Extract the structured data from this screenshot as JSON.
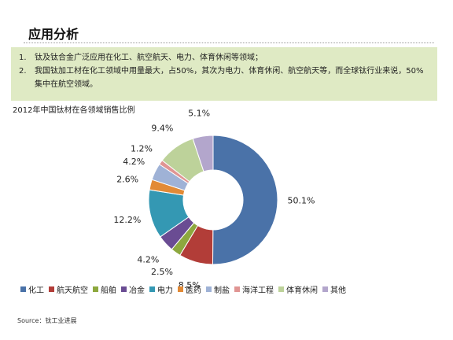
{
  "header": {
    "title": "应用分析"
  },
  "bullets": [
    {
      "num": "1.",
      "text": "钛及钛合金广泛应用在化工、航空航天、电力、体育休闲等领域；"
    },
    {
      "num": "2.",
      "text": "我国钛加工材在化工领域中用量最大，占50%，其次为电力、体育休闲、航空航天等，而全球钛行业来说，50%集中在航空领域。"
    }
  ],
  "chart_data": {
    "type": "pie",
    "title": "2012年中国钛材在各领域销售比例",
    "donut": true,
    "legend_position": "bottom",
    "categories": [
      "化工",
      "航天航空",
      "船舶",
      "冶金",
      "电力",
      "医药",
      "制盐",
      "海洋工程",
      "体育休闲",
      "其他"
    ],
    "values": [
      50.1,
      8.5,
      2.5,
      4.2,
      12.2,
      2.6,
      4.2,
      1.2,
      9.4,
      5.1
    ],
    "data_labels": [
      "50.1%",
      "8.5%",
      "2.5%",
      "4.2%",
      "12.2%",
      "2.6%",
      "4.2%",
      "1.2%",
      "9.4%",
      "5.1%"
    ],
    "colors": [
      "#4a72a8",
      "#b23d38",
      "#8da83e",
      "#6a4c93",
      "#3498b3",
      "#e28a36",
      "#9fb2d6",
      "#e09593",
      "#bdd29a",
      "#b3a6cc"
    ]
  },
  "source": {
    "text": "Source：钛工业进展"
  }
}
